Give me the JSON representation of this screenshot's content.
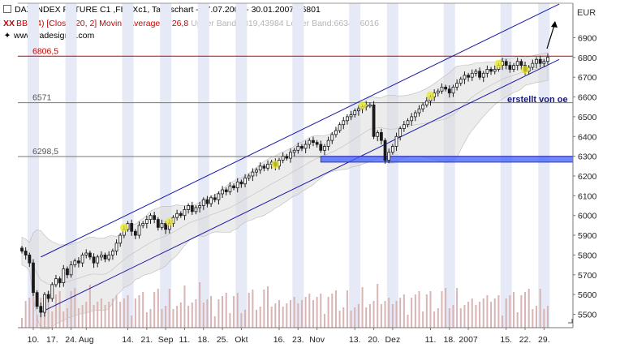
{
  "header": {
    "title": "DAX INDEX FUTURE C1 ,FDAXc1, Tageschart - 07.07.2006 - 30.01.2007 - 6801",
    "indicator_prefix": "XX",
    "indicator": "BBD(4) [Close, 20, 2] Moving Average:6726,8",
    "bands": "Upper Band:6819,43984 Lower Band:6634,16016",
    "source": "www.tradesignal.com"
  },
  "chart_data": {
    "type": "candlestick",
    "instrument": "DAX INDEX FUTURE C1 ,FDAXc1",
    "y_axis_label": "EUR",
    "ylim": [
      5460,
      6960
    ],
    "y_ticks": [
      5500,
      5600,
      5700,
      5800,
      5900,
      6000,
      6100,
      6200,
      6300,
      6400,
      6500,
      6600,
      6700,
      6800,
      6900
    ],
    "x_ticks": [
      "10.",
      "17.",
      "24.",
      "Aug",
      "14.",
      "21.",
      "Sep",
      "11.",
      "18.",
      "25.",
      "Okt",
      "16.",
      "23.",
      "Nov",
      "13.",
      "20.",
      "Dez",
      "11.",
      "18.",
      "2007",
      "15.",
      "22.",
      "29."
    ],
    "x_tick_index": [
      3,
      8,
      13,
      17,
      28,
      33,
      38,
      43,
      48,
      53,
      58,
      68,
      73,
      78,
      88,
      93,
      98,
      108,
      113,
      118,
      128,
      133,
      138
    ],
    "close": [
      5820,
      5800,
      5760,
      5610,
      5540,
      5510,
      5600,
      5580,
      5650,
      5680,
      5660,
      5730,
      5700,
      5750,
      5770,
      5760,
      5800,
      5810,
      5790,
      5760,
      5790,
      5800,
      5780,
      5800,
      5820,
      5860,
      5900,
      5930,
      5960,
      5920,
      5900,
      5950,
      5960,
      5980,
      6000,
      5980,
      5940,
      5960,
      5930,
      5960,
      5990,
      6010,
      6000,
      6030,
      6050,
      6020,
      6040,
      6050,
      6080,
      6060,
      6090,
      6080,
      6110,
      6130,
      6120,
      6150,
      6140,
      6170,
      6160,
      6190,
      6200,
      6220,
      6230,
      6250,
      6240,
      6260,
      6270,
      6250,
      6280,
      6300,
      6290,
      6320,
      6330,
      6350,
      6340,
      6360,
      6380,
      6370,
      6360,
      6330,
      6350,
      6380,
      6410,
      6430,
      6460,
      6480,
      6500,
      6510,
      6530,
      6540,
      6550,
      6560,
      6560,
      6400,
      6420,
      6380,
      6280,
      6320,
      6350,
      6400,
      6440,
      6460,
      6480,
      6500,
      6520,
      6540,
      6560,
      6580,
      6600,
      6620,
      6630,
      6650,
      6640,
      6620,
      6650,
      6670,
      6690,
      6710,
      6700,
      6720,
      6730,
      6700,
      6720,
      6740,
      6730,
      6740,
      6760,
      6780,
      6760,
      6740,
      6760,
      6780,
      6760,
      6730,
      6750,
      6770,
      6790,
      6770,
      6780,
      6801
    ],
    "bollinger": {
      "period": 20,
      "std_dev": 2,
      "moving_average_last": 6726.8,
      "upper_band_last": 6819.43984,
      "lower_band_last": 6634.16016
    },
    "horizontal_levels": [
      {
        "value": 6806.5,
        "label": "6806,5",
        "color": "#cc0000"
      },
      {
        "value": 6571,
        "label": "6571",
        "color": "#777777"
      },
      {
        "value": 6298.5,
        "label": "6298,5",
        "color": "#777777"
      }
    ],
    "trend_channel": {
      "lower": {
        "from": [
          5,
          5510
        ],
        "to": [
          142,
          6790
        ]
      },
      "upper": {
        "from": [
          5,
          5790
        ],
        "to": [
          142,
          7070
        ]
      }
    },
    "support_box": {
      "from_index": 79,
      "to_index": 142,
      "low": 6270,
      "high": 6300,
      "color": "#3f5fff"
    },
    "annotation": "erstellt von oe",
    "highlight_indices": [
      27,
      39,
      67,
      90,
      108,
      126,
      133
    ]
  },
  "colors": {
    "background": "#ffffff",
    "plot_background": "#ffffff",
    "stripe": "#e6e9f6",
    "band_fill": "#dcdcdc",
    "channel_line": "#1a1aa8",
    "candle": "#1a1a1a",
    "volume": "#d8b4b4",
    "highlight": "#e8e82a",
    "resistance": "#cc0000",
    "grid_level": "#777777",
    "text_red": "#cc0000"
  }
}
